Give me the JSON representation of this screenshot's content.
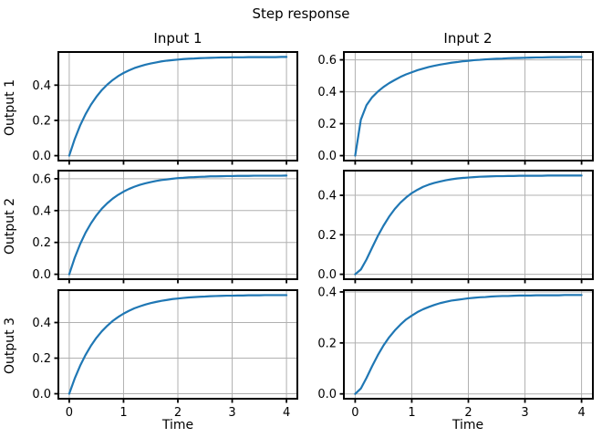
{
  "chart_data": {
    "type": "line",
    "title": "Step response",
    "col_titles": [
      "Input 1",
      "Input 2"
    ],
    "row_titles": [
      "Output 1",
      "Output 2",
      "Output 3"
    ],
    "xlabel": "Time",
    "line_color": "#1f77b4",
    "grid_color": "#b0b0b0",
    "grid": true,
    "legend": "none",
    "x": [
      0,
      0.1,
      0.2,
      0.3,
      0.4,
      0.5,
      0.6,
      0.7,
      0.8,
      0.9,
      1.0,
      1.1,
      1.2,
      1.3,
      1.4,
      1.5,
      1.6,
      1.7,
      1.8,
      1.9,
      2.0,
      2.1,
      2.2,
      2.3,
      2.4,
      2.5,
      2.6,
      2.7,
      2.8,
      2.9,
      3.0,
      3.1,
      3.2,
      3.3,
      3.4,
      3.5,
      3.6,
      3.7,
      3.8,
      3.9,
      4.0
    ],
    "xticks": [
      0,
      1,
      2,
      3,
      4
    ],
    "xlim": [
      -0.2,
      4.2
    ],
    "subplots": [
      {
        "row": "Output 1",
        "col": "Input 1",
        "yticks": [
          0.0,
          0.2,
          0.4
        ],
        "ylim": [
          -0.028,
          0.588
        ],
        "steady_state": 0.56,
        "y": [
          0,
          0.093,
          0.171,
          0.235,
          0.289,
          0.334,
          0.372,
          0.403,
          0.429,
          0.451,
          0.469,
          0.484,
          0.497,
          0.507,
          0.516,
          0.523,
          0.529,
          0.535,
          0.539,
          0.542,
          0.545,
          0.548,
          0.55,
          0.551,
          0.553,
          0.554,
          0.555,
          0.556,
          0.557,
          0.557,
          0.558,
          0.558,
          0.558,
          0.559,
          0.559,
          0.559,
          0.559,
          0.559,
          0.559,
          0.56,
          0.56
        ]
      },
      {
        "row": "Output 1",
        "col": "Input 2",
        "yticks": [
          0.0,
          0.2,
          0.4,
          0.6
        ],
        "ylim": [
          -0.031,
          0.649
        ],
        "steady_state": 0.62,
        "y": [
          0,
          0.225,
          0.316,
          0.366,
          0.401,
          0.43,
          0.454,
          0.474,
          0.493,
          0.509,
          0.522,
          0.535,
          0.545,
          0.555,
          0.563,
          0.57,
          0.576,
          0.582,
          0.586,
          0.591,
          0.594,
          0.598,
          0.6,
          0.603,
          0.605,
          0.607,
          0.608,
          0.61,
          0.611,
          0.612,
          0.613,
          0.614,
          0.615,
          0.615,
          0.616,
          0.617,
          0.617,
          0.617,
          0.618,
          0.618,
          0.618
        ]
      },
      {
        "row": "Output 2",
        "col": "Input 1",
        "yticks": [
          0.0,
          0.2,
          0.4,
          0.6
        ],
        "ylim": [
          -0.031,
          0.651
        ],
        "steady_state": 0.62,
        "y": [
          0,
          0.103,
          0.189,
          0.261,
          0.32,
          0.37,
          0.412,
          0.446,
          0.475,
          0.499,
          0.519,
          0.536,
          0.55,
          0.562,
          0.571,
          0.579,
          0.586,
          0.592,
          0.596,
          0.6,
          0.604,
          0.606,
          0.609,
          0.61,
          0.612,
          0.613,
          0.615,
          0.615,
          0.616,
          0.617,
          0.617,
          0.618,
          0.618,
          0.618,
          0.619,
          0.619,
          0.619,
          0.619,
          0.619,
          0.619,
          0.62
        ]
      },
      {
        "row": "Output 2",
        "col": "Input 2",
        "yticks": [
          0.0,
          0.2,
          0.4
        ],
        "ylim": [
          -0.025,
          0.525
        ],
        "steady_state": 0.5,
        "y": [
          0,
          0.024,
          0.075,
          0.135,
          0.194,
          0.246,
          0.292,
          0.331,
          0.363,
          0.389,
          0.411,
          0.428,
          0.443,
          0.454,
          0.463,
          0.47,
          0.476,
          0.481,
          0.485,
          0.488,
          0.49,
          0.492,
          0.494,
          0.495,
          0.496,
          0.497,
          0.497,
          0.498,
          0.498,
          0.499,
          0.499,
          0.499,
          0.499,
          0.499,
          0.5,
          0.5,
          0.5,
          0.5,
          0.5,
          0.5,
          0.5
        ]
      },
      {
        "row": "Output 3",
        "col": "Input 1",
        "yticks": [
          0.0,
          0.2,
          0.4
        ],
        "ylim": [
          -0.028,
          0.582
        ],
        "steady_state": 0.554,
        "y": [
          0,
          0.085,
          0.157,
          0.218,
          0.27,
          0.314,
          0.351,
          0.382,
          0.409,
          0.431,
          0.45,
          0.466,
          0.48,
          0.491,
          0.501,
          0.509,
          0.516,
          0.522,
          0.527,
          0.532,
          0.535,
          0.538,
          0.541,
          0.543,
          0.545,
          0.546,
          0.548,
          0.549,
          0.55,
          0.551,
          0.551,
          0.552,
          0.552,
          0.553,
          0.553,
          0.553,
          0.554,
          0.554,
          0.554,
          0.554,
          0.554
        ]
      },
      {
        "row": "Output 3",
        "col": "Input 2",
        "yticks": [
          0.0,
          0.2,
          0.4
        ],
        "ylim": [
          -0.019,
          0.407
        ],
        "steady_state": 0.388,
        "y": [
          0,
          0.021,
          0.063,
          0.109,
          0.152,
          0.19,
          0.222,
          0.249,
          0.272,
          0.292,
          0.307,
          0.321,
          0.332,
          0.341,
          0.349,
          0.356,
          0.361,
          0.366,
          0.369,
          0.372,
          0.375,
          0.377,
          0.379,
          0.38,
          0.382,
          0.383,
          0.384,
          0.384,
          0.385,
          0.386,
          0.386,
          0.386,
          0.387,
          0.387,
          0.387,
          0.387,
          0.387,
          0.388,
          0.388,
          0.388,
          0.388
        ]
      }
    ]
  }
}
